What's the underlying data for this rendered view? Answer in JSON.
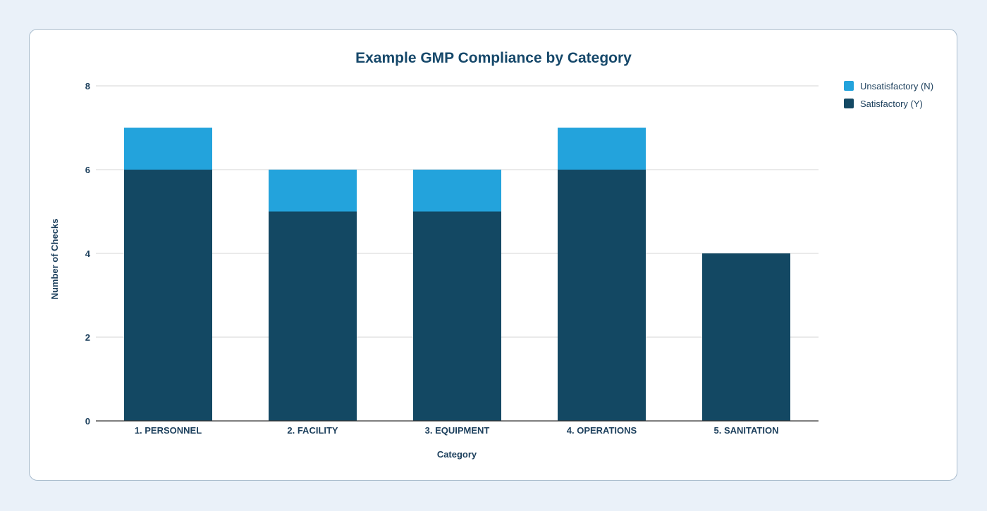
{
  "chart_data": {
    "type": "bar",
    "stacked": true,
    "title": "Example GMP Compliance by Category",
    "xlabel": "Category",
    "ylabel": "Number of Checks",
    "ylim": [
      0,
      8
    ],
    "yticks": [
      0,
      2,
      4,
      6,
      8
    ],
    "grid": true,
    "legend_position": "top-right",
    "categories": [
      "1. PERSONNEL",
      "2. FACILITY",
      "3. EQUIPMENT",
      "4. OPERATIONS",
      "5. SANITATION"
    ],
    "series": [
      {
        "name": "Satisfactory (Y)",
        "color": "#134863",
        "values": [
          6,
          5,
          5,
          6,
          4
        ]
      },
      {
        "name": "Unsatisfactory (N)",
        "color": "#23a3dc",
        "values": [
          1,
          1,
          1,
          1,
          0
        ]
      }
    ],
    "legend_order": [
      "Unsatisfactory (N)",
      "Satisfactory (Y)"
    ]
  }
}
